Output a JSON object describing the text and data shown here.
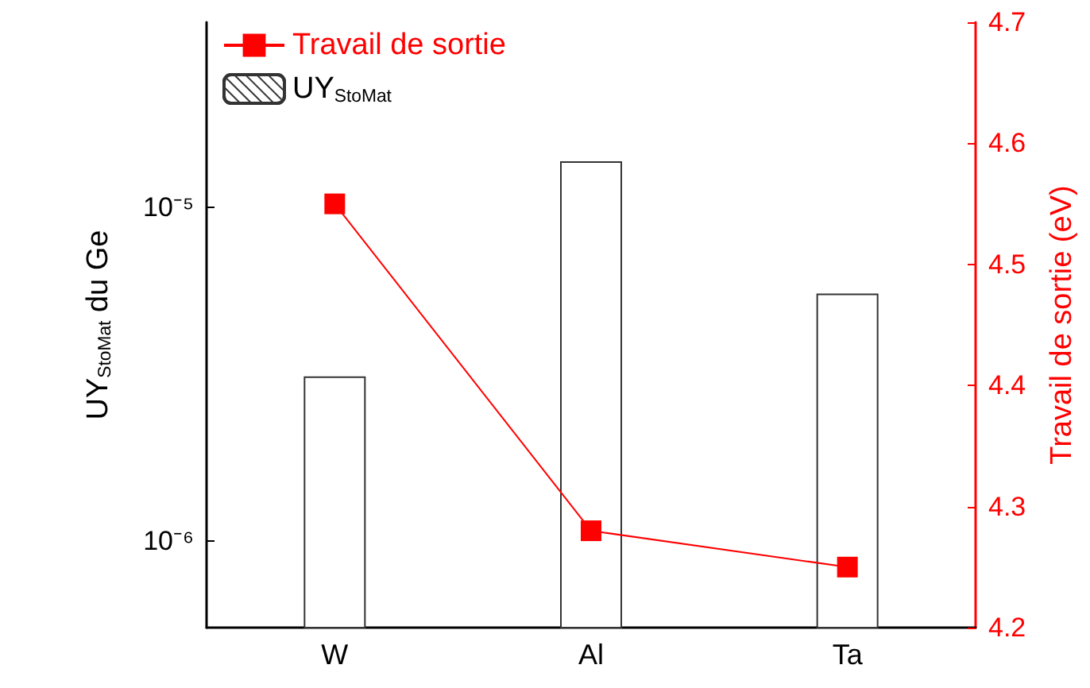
{
  "chart_data": {
    "type": "bar",
    "categories": [
      "W",
      "Al",
      "Ta"
    ],
    "ylabel": "UY$_{StoMat}$ du Ge",
    "y2label": "Travail de sortie (eV)",
    "log": "y",
    "ylim": [
      5.5e-07,
      3.6e-05
    ],
    "yticks": [
      {
        "value": 1e-06,
        "label": "10⁻⁶"
      },
      {
        "value": 1e-05,
        "label": "10⁻⁵"
      }
    ],
    "y2lim": [
      4.2,
      4.7
    ],
    "y2ticks": [
      4.2,
      4.3,
      4.4,
      4.5,
      4.6,
      4.7
    ],
    "marker": "square",
    "line_style": "solid",
    "series": [
      {
        "name": "Travail de sortie",
        "type": "line",
        "axis": "y2",
        "color": "#ff0000",
        "values": [
          4.55,
          4.28,
          4.25
        ]
      },
      {
        "name": "UY$_{StoMat}$",
        "color": "#333333",
        "values": [
          3.1e-06,
          1.37e-05,
          5.5e-06
        ]
      }
    ],
    "legend": "top left",
    "grid": false
  }
}
